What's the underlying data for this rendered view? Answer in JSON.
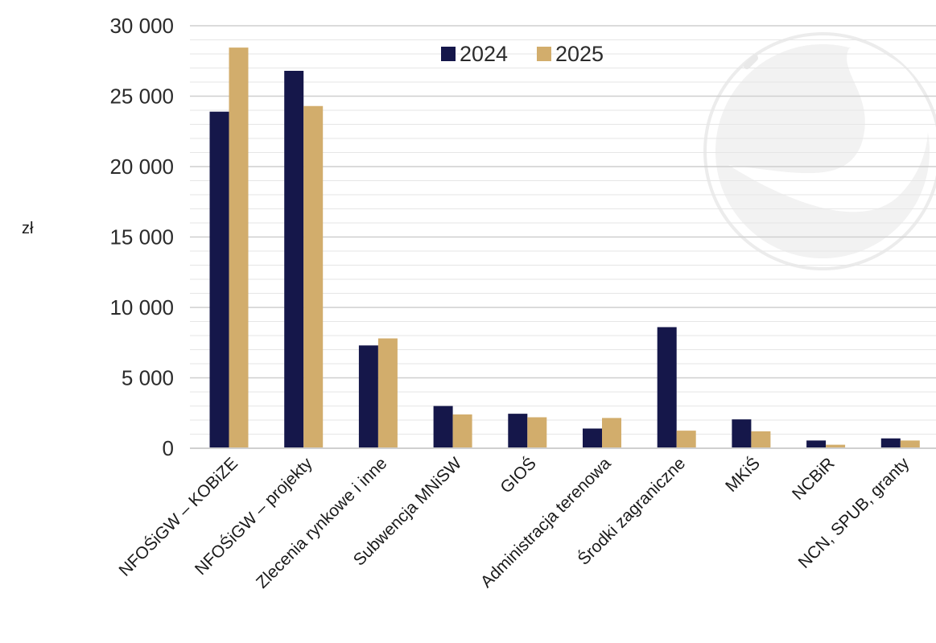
{
  "chart_data": {
    "type": "bar",
    "ylabel": "zł",
    "xlabel": "",
    "ylim": [
      0,
      30000
    ],
    "yticks": [
      0,
      5000,
      10000,
      15000,
      20000,
      25000,
      30000
    ],
    "ytick_labels": [
      "0",
      "5 000",
      "10 000",
      "15 000",
      "20 000",
      "25 000",
      "30 000"
    ],
    "grid": true,
    "legend_position": "top",
    "categories": [
      "NFOŚiGW – KOBiZE",
      "NFOŚiGW – projekty",
      "Zlecenia rynkowe i inne",
      "Subwencja MNiSW",
      "GIOŚ",
      "Administracja terenowa",
      "Środki zagraniczne",
      "MKiŚ",
      "NCBiR",
      "NCN, SPUB, granty"
    ],
    "series": [
      {
        "name": "2024",
        "color": "#15174a",
        "values": [
          23900,
          26800,
          7300,
          3000,
          2450,
          1400,
          8600,
          2050,
          550,
          700
        ]
      },
      {
        "name": "2025",
        "color": "#d2ad6c",
        "values": [
          28450,
          24300,
          7800,
          2400,
          2200,
          2150,
          1250,
          1200,
          250,
          550
        ]
      }
    ]
  }
}
